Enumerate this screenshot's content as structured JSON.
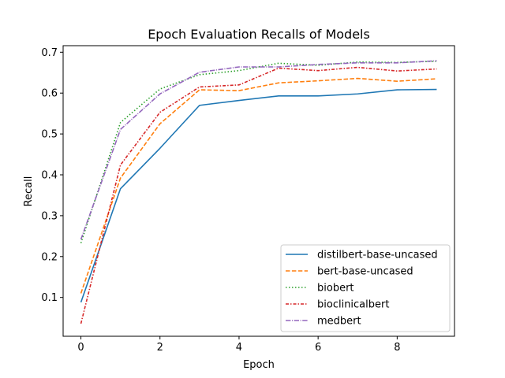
{
  "chart_data": {
    "type": "line",
    "title": "Epoch Evaluation Recalls of Models",
    "xlabel": "Epoch",
    "ylabel": "Recall",
    "x": [
      0,
      1,
      2,
      3,
      4,
      5,
      6,
      7,
      8,
      9
    ],
    "xlim": [
      -0.45,
      9.45
    ],
    "ylim": [
      0.005,
      0.716
    ],
    "xticks": [
      0,
      2,
      4,
      6,
      8
    ],
    "yticks": [
      0.1,
      0.2,
      0.3,
      0.4,
      0.5,
      0.6,
      0.7
    ],
    "grid": false,
    "legend_position": "lower right",
    "series": [
      {
        "name": "distilbert-base-uncased",
        "color": "#1f77b4",
        "style": "solid",
        "values": [
          0.088,
          0.366,
          0.465,
          0.57,
          0.582,
          0.593,
          0.593,
          0.598,
          0.608,
          0.609
        ]
      },
      {
        "name": "bert-base-uncased",
        "color": "#ff7f0e",
        "style": "dashed",
        "values": [
          0.11,
          0.392,
          0.525,
          0.608,
          0.606,
          0.625,
          0.63,
          0.636,
          0.629,
          0.635
        ]
      },
      {
        "name": "biobert",
        "color": "#2ca02c",
        "style": "dotted",
        "values": [
          0.233,
          0.528,
          0.61,
          0.645,
          0.655,
          0.673,
          0.668,
          0.676,
          0.675,
          0.678
        ]
      },
      {
        "name": "bioclinicalbert",
        "color": "#d62728",
        "style": "dashdot",
        "values": [
          0.036,
          0.424,
          0.553,
          0.615,
          0.62,
          0.661,
          0.655,
          0.663,
          0.654,
          0.659
        ]
      },
      {
        "name": "medbert",
        "color": "#9467bd",
        "style": "dashdotted",
        "values": [
          0.242,
          0.511,
          0.598,
          0.651,
          0.664,
          0.664,
          0.67,
          0.674,
          0.674,
          0.679
        ]
      }
    ]
  }
}
